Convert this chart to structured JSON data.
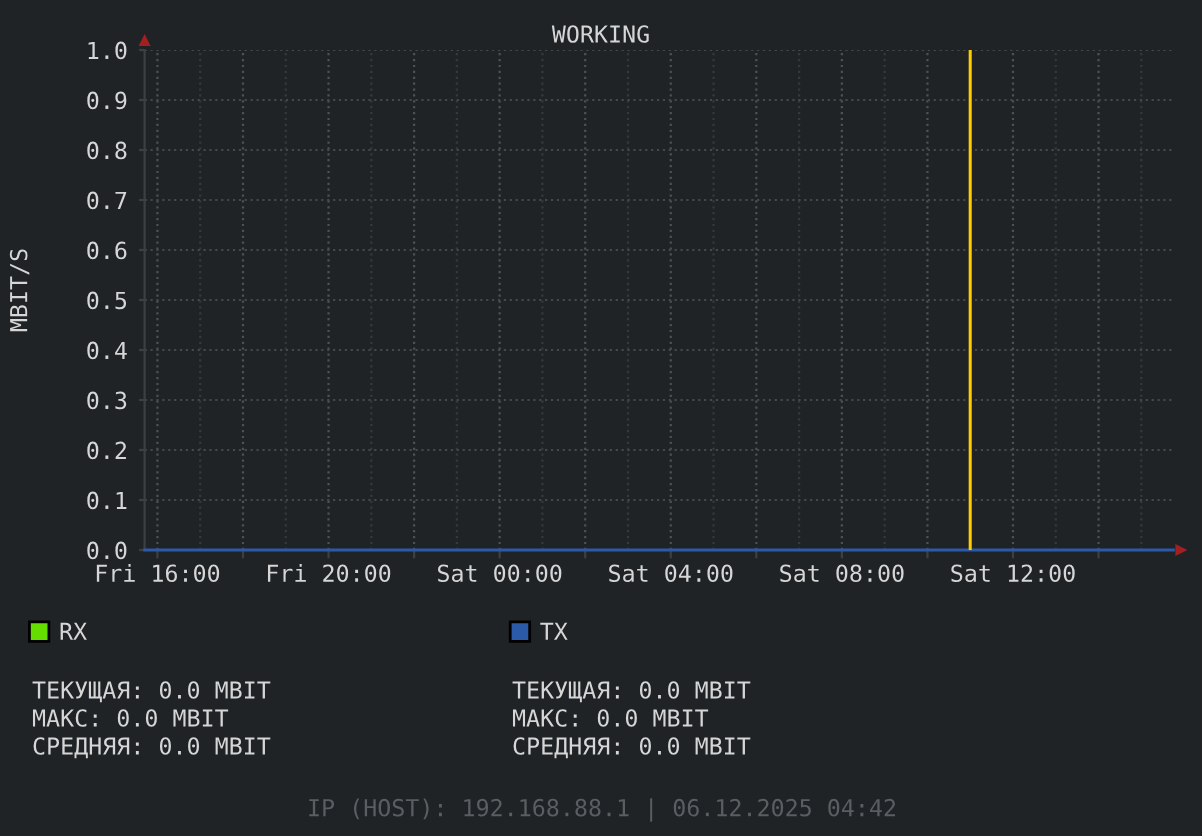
{
  "chart_data": {
    "type": "line",
    "title": "WORKING",
    "ylabel": "MBIT/S",
    "x": [
      "2025-12-05T15:42",
      "2025-12-06T15:45"
    ],
    "series": [
      {
        "name": "RX",
        "color": "#66dd00",
        "values": [
          null,
          null
        ]
      },
      {
        "name": "TX",
        "color": "#2b5aa8",
        "values": [
          0.0,
          0.0
        ]
      }
    ],
    "xlim": [
      "2025-12-05T15:42",
      "2025-12-06T15:45"
    ],
    "xticks": [
      {
        "value": "2025-12-05T16:00",
        "label": "Fri 16:00"
      },
      {
        "value": "2025-12-05T18:00",
        "label": null
      },
      {
        "value": "2025-12-05T20:00",
        "label": "Fri 20:00"
      },
      {
        "value": "2025-12-05T22:00",
        "label": null
      },
      {
        "value": "2025-12-06T00:00",
        "label": "Sat 00:00"
      },
      {
        "value": "2025-12-06T02:00",
        "label": null
      },
      {
        "value": "2025-12-06T04:00",
        "label": "Sat 04:00"
      },
      {
        "value": "2025-12-06T06:00",
        "label": null
      },
      {
        "value": "2025-12-06T08:00",
        "label": "Sat 08:00"
      },
      {
        "value": "2025-12-06T10:00",
        "label": null
      },
      {
        "value": "2025-12-06T12:00",
        "label": "Sat 12:00"
      },
      {
        "value": "2025-12-06T14:00",
        "label": null
      }
    ],
    "ylim": [
      0,
      1
    ],
    "yticks": [
      {
        "value": 0,
        "label": "0.0"
      },
      0.1,
      0.2,
      0.3,
      0.4,
      0.5,
      0.6,
      0.7,
      0.8,
      0.9,
      {
        "value": 1,
        "label": "1.0"
      }
    ],
    "ref_lines": [
      {
        "axis": "x",
        "value": "2025-12-06T11:00",
        "color": "#ffcc00"
      }
    ],
    "annotations": [
      "ТЕКУЩАЯ: 0.0 MBIT",
      "МАКС: 0.0 MBIT",
      "СРЕДНЯЯ: 0.0 MBIT",
      "ТЕКУЩАЯ: 0.0 MBIT",
      "МАКС: 0.0 MBIT",
      "СРЕДНЯЯ: 0.0 MBIT",
      "IP (HOST): 192.168.88.1 | 06.12.2025 04:42"
    ],
    "grid": true,
    "legend": "bottom",
    "line_style": "solid"
  }
}
